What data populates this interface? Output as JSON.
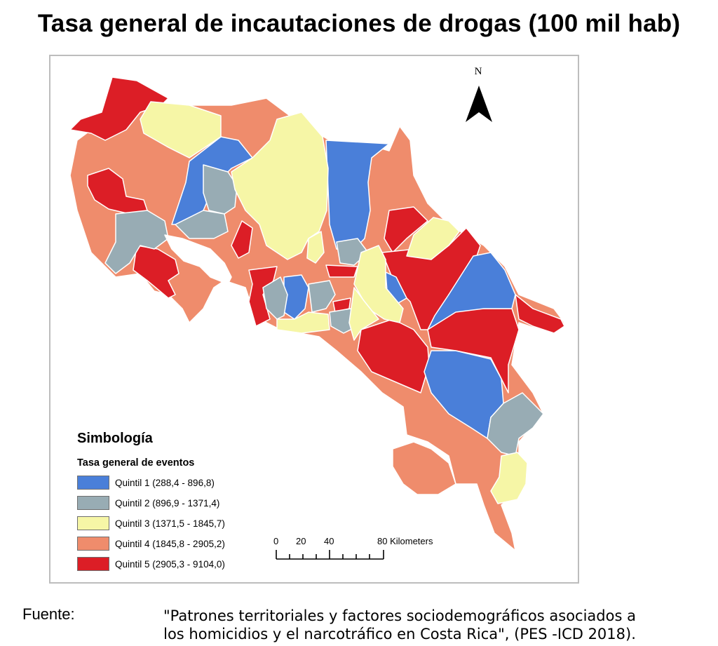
{
  "title": "Tasa general de incautaciones de drogas (100 mil hab)",
  "north_label": "N",
  "legend": {
    "title": "Simbología",
    "subtitle": "Tasa general de eventos",
    "items": [
      {
        "label": "Quintil 1 (288,4 - 896,8)",
        "color": "#4a7fd9"
      },
      {
        "label": "Quintil 2 (896,9 - 1371,4)",
        "color": "#98acb4"
      },
      {
        "label": "Quintil 3 (1371,5 - 1845,7)",
        "color": "#f6f6a6"
      },
      {
        "label": "Quintil 4 (1845,8 - 2905,2)",
        "color": "#ef8c6c"
      },
      {
        "label": "Quintil 5 (2905,3 - 9104,0)",
        "color": "#dc1e26"
      }
    ]
  },
  "scale_bar": {
    "labels": [
      "0",
      "20",
      "40",
      "80 Kilometers"
    ]
  },
  "source": {
    "label": "Fuente:",
    "text": "\"Patrones territoriales y factores sociodemográficos asociados a\nlos homicidios y el narcotráfico en Costa Rica\", (PES -ICD 2018)."
  },
  "colors": {
    "quintil_1": "#4a7fd9",
    "quintil_2": "#98acb4",
    "quintil_3": "#f6f6a6",
    "quintil_4": "#ef8c6c",
    "quintil_5": "#dc1e26",
    "border": "#ffffff",
    "frame": "#bdbdbd"
  },
  "icons": {
    "north_arrow": "north-arrow-icon"
  }
}
